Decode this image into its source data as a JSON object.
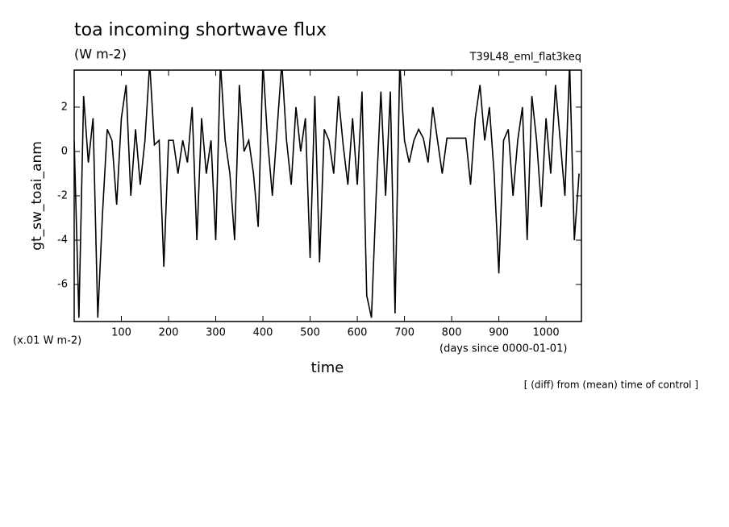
{
  "chart_data": {
    "type": "line",
    "title": "toa incoming shortwave flux",
    "subtitle": "(W m-2)",
    "annotation": "T39L48_eml_flat3keq",
    "y_label": "gt_sw_toai_anm",
    "y_unit": "(x.01 W m-2)",
    "x_label": "time",
    "x_unit": "(days since 0000-01-01)",
    "note": "[ (diff) from (mean) time of control ]",
    "x": [
      0,
      10,
      20,
      30,
      40,
      50,
      60,
      70,
      80,
      90,
      100,
      110,
      120,
      130,
      140,
      150,
      160,
      170,
      180,
      190,
      200,
      210,
      220,
      230,
      240,
      250,
      260,
      270,
      280,
      290,
      300,
      310,
      320,
      330,
      340,
      350,
      360,
      370,
      380,
      390,
      400,
      410,
      420,
      430,
      440,
      450,
      460,
      470,
      480,
      490,
      500,
      510,
      520,
      530,
      540,
      550,
      560,
      570,
      580,
      590,
      600,
      610,
      620,
      630,
      640,
      650,
      660,
      670,
      680,
      690,
      700,
      710,
      720,
      730,
      740,
      750,
      760,
      770,
      780,
      790,
      800,
      810,
      820,
      830,
      840,
      850,
      860,
      870,
      880,
      890,
      900,
      910,
      920,
      930,
      940,
      950,
      960,
      970,
      980,
      990,
      1000,
      1010,
      1020,
      1030,
      1040,
      1050,
      1060,
      1070
    ],
    "series": [
      {
        "color": "#000000",
        "values": [
          0.5,
          -7.5,
          2.5,
          -0.5,
          1.5,
          -7.5,
          -2.8,
          1,
          0.5,
          -2.4,
          1.5,
          3,
          -2,
          1,
          -1.5,
          0.5,
          4,
          0.3,
          0.5,
          -5.2,
          0.5,
          0.5,
          -1,
          0.5,
          -0.5,
          2,
          -4,
          1.5,
          -1,
          0.5,
          -4,
          4,
          0.5,
          -1,
          -4,
          3,
          0,
          0.5,
          -1,
          -3.4,
          4,
          0.5,
          -2,
          1,
          4,
          0.5,
          -1.5,
          2,
          0,
          1.5,
          -4.8,
          2.5,
          -5,
          1,
          0.5,
          -1,
          2.5,
          0.3,
          -1.5,
          1.5,
          -1.5,
          2.7,
          -6.5,
          -7.5,
          -2,
          2.7,
          -2,
          2.7,
          -7.3,
          4,
          0.5,
          -0.5,
          0.5,
          1,
          0.6,
          -0.5,
          2,
          0.5,
          -1,
          0.6,
          0.6,
          0.6,
          0.6,
          0.6,
          -1.5,
          1.5,
          3,
          0.5,
          2,
          -1,
          -5.5,
          0.5,
          1,
          -2,
          0.5,
          2,
          -4,
          2.5,
          0.5,
          -2.5,
          1.5,
          -1,
          3,
          0.5,
          -2,
          4,
          -4,
          -1
        ]
      }
    ],
    "xlim": [
      0,
      1075
    ],
    "ylim": [
      -7.67,
      3.67
    ],
    "xticks": [
      100,
      200,
      300,
      400,
      500,
      600,
      700,
      800,
      900,
      1000
    ],
    "yticks": [
      -6,
      -4,
      -2,
      0,
      2
    ]
  }
}
